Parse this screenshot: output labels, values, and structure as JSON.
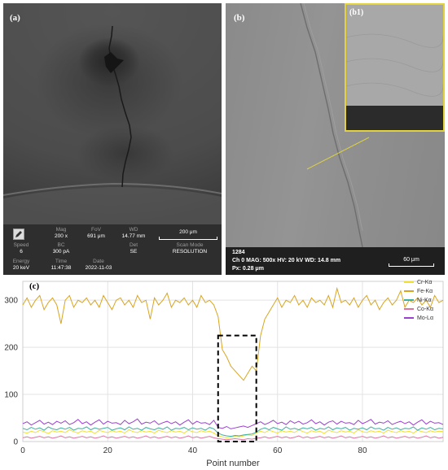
{
  "panel_a": {
    "label": "(a)",
    "info_bar": {
      "mag": {
        "key": "Mag",
        "value": "200 x"
      },
      "fov": {
        "key": "FoV",
        "value": "691 μm"
      },
      "wd": {
        "key": "WD",
        "value": "14.77 mm"
      },
      "scale": "200 μm",
      "speed": {
        "key": "Speed",
        "value": "6"
      },
      "bc": {
        "key": "BC",
        "value": "300 pA"
      },
      "det": {
        "key": "Det",
        "value": "SE"
      },
      "scan_mode": {
        "key": "Scan Mode",
        "value": "RESOLUTION"
      },
      "energy": {
        "key": "Energy",
        "value": "20 keV"
      },
      "time": {
        "key": "Time",
        "value": "11:47:38"
      },
      "date": {
        "key": "Date",
        "value": "2022-11-03"
      }
    }
  },
  "panel_b": {
    "label": "(b)",
    "inset_label": "(b1)",
    "info_bar": {
      "id": "1284",
      "line": "Ch 0   MAG: 500x   HV: 20 kV   WD: 14.8 mm",
      "px": "Px: 0.28 μm",
      "scale": "60 μm"
    }
  },
  "panel_c": {
    "label": "(c)"
  },
  "chart_data": {
    "type": "line",
    "xlabel": "Point number",
    "ylabel": "",
    "xlim": [
      0,
      99
    ],
    "ylim": [
      0,
      340
    ],
    "xticks": [
      0,
      20,
      40,
      60,
      80
    ],
    "yticks": [
      0,
      100,
      200,
      300
    ],
    "legend_position": "top-right",
    "highlight_box": {
      "x": [
        46,
        55
      ],
      "y": [
        0,
        225
      ]
    },
    "series": [
      {
        "name": "Cr-Kα",
        "color": "#f0e030",
        "values": [
          20,
          18,
          22,
          19,
          24,
          21,
          17,
          23,
          20,
          22,
          19,
          25,
          21,
          18,
          23,
          20,
          22,
          17,
          24,
          21,
          19,
          23,
          20,
          22,
          18,
          25,
          21,
          19,
          23,
          20,
          22,
          18,
          24,
          21,
          19,
          23,
          20,
          22,
          18,
          24,
          21,
          19,
          23,
          20,
          22,
          18,
          12,
          10,
          8,
          9,
          11,
          10,
          12,
          14,
          13,
          18,
          22,
          19,
          24,
          21,
          18,
          23,
          20,
          22,
          19,
          25,
          21,
          18,
          23,
          20,
          22,
          17,
          24,
          21,
          19,
          23,
          20,
          22,
          18,
          25,
          21,
          19,
          23,
          20,
          22,
          18,
          24,
          21,
          19,
          23,
          20,
          22,
          18,
          24,
          21,
          19,
          23,
          20,
          22,
          21
        ]
      },
      {
        "name": "Fe-Kα",
        "color": "#d9a520",
        "values": [
          290,
          305,
          285,
          300,
          310,
          280,
          295,
          305,
          290,
          250,
          300,
          310,
          285,
          300,
          295,
          305,
          290,
          300,
          285,
          310,
          295,
          280,
          300,
          305,
          290,
          300,
          285,
          310,
          295,
          300,
          260,
          305,
          290,
          300,
          315,
          285,
          300,
          295,
          305,
          290,
          300,
          285,
          310,
          295,
          300,
          290,
          265,
          195,
          180,
          160,
          150,
          140,
          130,
          145,
          160,
          150,
          225,
          260,
          275,
          290,
          305,
          285,
          300,
          295,
          310,
          290,
          300,
          285,
          305,
          295,
          300,
          290,
          310,
          285,
          325,
          295,
          300,
          290,
          305,
          285,
          300,
          310,
          290,
          300,
          280,
          295,
          305,
          290,
          300,
          320,
          285,
          300,
          295,
          305,
          290,
          300,
          285,
          310,
          295,
          300
        ]
      },
      {
        "name": "Ni-Kα",
        "color": "#3bb0a0",
        "values": [
          28,
          25,
          30,
          26,
          29,
          24,
          31,
          27,
          25,
          29,
          26,
          30,
          24,
          28,
          27,
          31,
          25,
          29,
          26,
          28,
          30,
          24,
          27,
          29,
          25,
          31,
          26,
          28,
          24,
          30,
          27,
          25,
          29,
          26,
          31,
          24,
          28,
          27,
          30,
          25,
          29,
          26,
          28,
          24,
          30,
          27,
          18,
          14,
          12,
          11,
          13,
          12,
          14,
          15,
          16,
          20,
          26,
          29,
          25,
          30,
          27,
          24,
          31,
          26,
          28,
          25,
          29,
          27,
          30,
          24,
          28,
          26,
          31,
          25,
          29,
          27,
          30,
          24,
          28,
          26,
          29,
          25,
          31,
          27,
          28,
          24,
          30,
          26,
          29,
          25,
          28,
          27,
          31,
          24,
          29,
          26,
          30,
          25,
          28,
          27
        ]
      },
      {
        "name": "Co-Kα",
        "color": "#e070a0",
        "values": [
          8,
          10,
          7,
          9,
          11,
          8,
          10,
          7,
          9,
          12,
          8,
          10,
          7,
          9,
          11,
          8,
          10,
          7,
          9,
          12,
          8,
          10,
          7,
          9,
          11,
          8,
          10,
          7,
          9,
          12,
          8,
          10,
          7,
          9,
          11,
          8,
          10,
          7,
          9,
          12,
          8,
          10,
          7,
          9,
          11,
          8,
          6,
          5,
          4,
          5,
          6,
          5,
          4,
          6,
          5,
          7,
          8,
          10,
          7,
          9,
          11,
          8,
          10,
          7,
          9,
          12,
          8,
          10,
          7,
          9,
          11,
          8,
          10,
          7,
          9,
          12,
          8,
          10,
          7,
          9,
          11,
          8,
          10,
          7,
          9,
          12,
          8,
          10,
          7,
          9,
          11,
          8,
          10,
          7,
          9,
          12,
          8,
          10,
          7,
          9
        ]
      },
      {
        "name": "Mo-Lα",
        "color": "#9b40d0",
        "values": [
          38,
          42,
          35,
          40,
          45,
          37,
          41,
          36,
          43,
          39,
          44,
          36,
          40,
          47,
          38,
          42,
          35,
          41,
          46,
          37,
          43,
          39,
          40,
          36,
          45,
          38,
          42,
          48,
          37,
          41,
          39,
          44,
          36,
          40,
          43,
          38,
          42,
          35,
          41,
          46,
          37,
          43,
          39,
          40,
          36,
          45,
          30,
          28,
          32,
          27,
          29,
          31,
          33,
          30,
          34,
          38,
          42,
          36,
          40,
          45,
          38,
          41,
          36,
          44,
          39,
          43,
          37,
          40,
          46,
          38,
          42,
          35,
          41,
          44,
          37,
          43,
          39,
          40,
          36,
          45,
          38,
          42,
          47,
          37,
          41,
          39,
          44,
          36,
          40,
          43,
          38,
          42,
          35,
          41,
          46,
          37,
          43,
          39,
          40,
          36
        ]
      }
    ]
  }
}
